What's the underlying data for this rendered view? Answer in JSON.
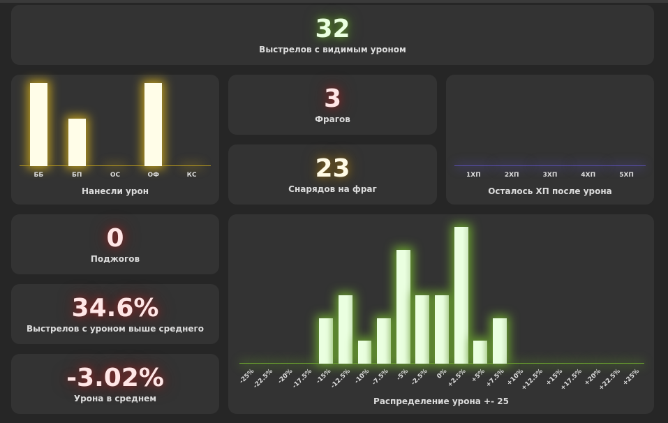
{
  "stats": {
    "shots": {
      "value": "32",
      "label": "Выстрелов с видимым уроном"
    },
    "frags": {
      "value": "3",
      "label": "Фрагов"
    },
    "shells_per_frag": {
      "value": "23",
      "label": "Снарядов на фраг"
    },
    "fires": {
      "value": "0",
      "label": "Поджогов"
    },
    "above_avg": {
      "value": "34.6%",
      "label": "Выстрелов с уроном выше среднего"
    },
    "avg_damage": {
      "value": "-3.02%",
      "label": "Урона в среднем"
    }
  },
  "chart_data": [
    {
      "type": "bar",
      "title": "Нанесли урон",
      "categories": [
        "ББ",
        "БП",
        "ОС",
        "ОФ",
        "КС"
      ],
      "values": [
        7,
        4,
        0,
        7,
        0
      ],
      "color": "#fffde8",
      "glow": "#b89a20"
    },
    {
      "type": "bar",
      "title": "Осталось ХП после урона",
      "categories": [
        "1ХП",
        "2ХП",
        "3ХП",
        "4ХП",
        "5ХП"
      ],
      "values": [
        0,
        0,
        0,
        0,
        0
      ],
      "color": "#8a80d0",
      "glow": "#5a50b0"
    },
    {
      "type": "bar",
      "title": "Распределение урона +- 25",
      "categories": [
        "-25%",
        "-22.5%",
        "-20%",
        "-17.5%",
        "-15%",
        "-12.5%",
        "-10%",
        "-7.5%",
        "-5%",
        "-2.5%",
        "0%",
        "+2.5%",
        "+5%",
        "+7.5%",
        "+10%",
        "+12.5%",
        "+15%",
        "+17.5%",
        "+20%",
        "+22.5%",
        "+25%"
      ],
      "values": [
        0,
        0,
        0,
        0,
        2,
        3,
        1,
        2,
        5,
        3,
        3,
        6,
        1,
        2,
        0,
        0,
        0,
        0,
        0,
        0,
        0
      ],
      "color": "#eaffe0",
      "glow": "#6aa030"
    }
  ]
}
